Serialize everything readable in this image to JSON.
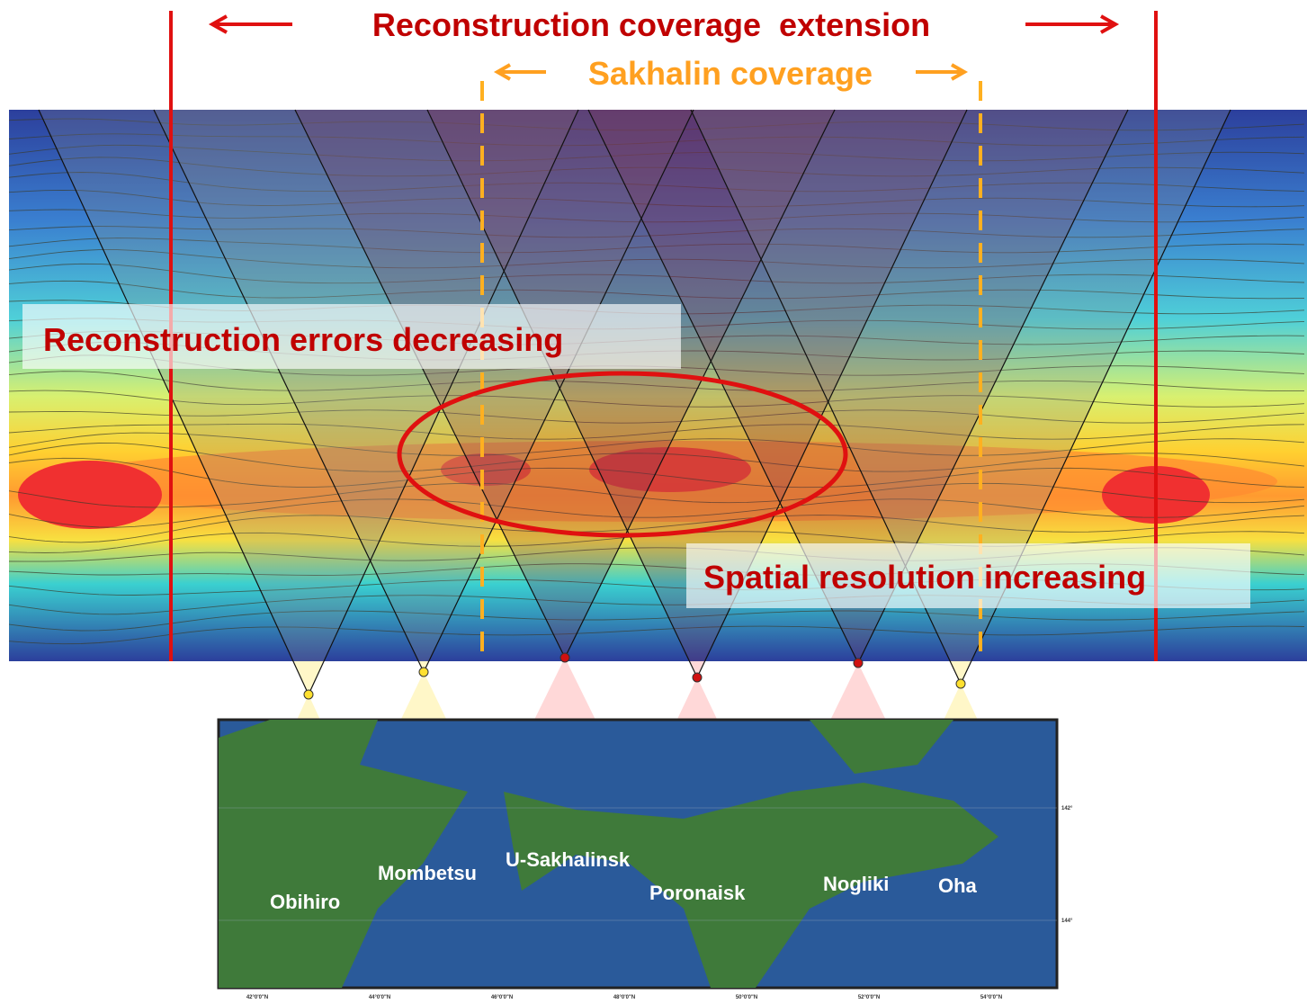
{
  "title": "Reconstruction coverage  extension",
  "subtitle": "Sakhalin coverage",
  "annotations": [
    "Reconstruction errors decreasing",
    "Spatial resolution increasing"
  ],
  "stations": [
    {
      "label": "Obihiro"
    },
    {
      "label": "Mombetsu"
    },
    {
      "label": "U-Sakhalinsk"
    },
    {
      "label": "Poronaisk"
    },
    {
      "label": "Nogliki"
    },
    {
      "label": "Oha"
    }
  ],
  "map": {
    "x_labels": [
      "42°0'0\"N",
      "44°0'0\"N",
      "46°0'0\"N",
      "48°0'0\"N",
      "50°0'0\"N",
      "52°0'0\"N",
      "54°0'0\"N"
    ],
    "y_labels": [
      "142°",
      "144°"
    ]
  }
}
